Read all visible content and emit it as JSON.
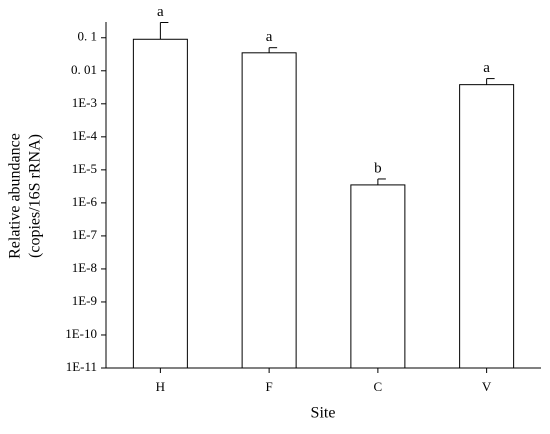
{
  "chart_data": {
    "type": "bar",
    "log_scale": true,
    "categories": [
      "H",
      "F",
      "C",
      "V"
    ],
    "values": [
      0.09,
      0.035,
      3.5e-06,
      0.0038
    ],
    "errors": [
      0.2,
      0.015,
      1.8e-06,
      0.002
    ],
    "annotations": [
      "a",
      "a",
      "b",
      "a"
    ],
    "color": "#ffffff",
    "xlabel": "Site",
    "ylabel": [
      "Relative abundance",
      "(copies/16S rRNA)"
    ],
    "ylim": [
      1e-11,
      0.3
    ],
    "yticks": [
      {
        "value": 0.1,
        "label": "0. 1"
      },
      {
        "value": 0.01,
        "label": "0. 01"
      },
      {
        "value": 0.001,
        "label": "1E-3"
      },
      {
        "value": 0.0001,
        "label": "1E-4"
      },
      {
        "value": 1e-05,
        "label": "1E-5"
      },
      {
        "value": 1e-06,
        "label": "1E-6"
      },
      {
        "value": 1e-07,
        "label": "1E-7"
      },
      {
        "value": 1e-08,
        "label": "1E-8"
      },
      {
        "value": 1e-09,
        "label": "1E-9"
      },
      {
        "value": 1e-10,
        "label": "1E-10"
      },
      {
        "value": 1e-11,
        "label": "1E-11"
      }
    ]
  }
}
